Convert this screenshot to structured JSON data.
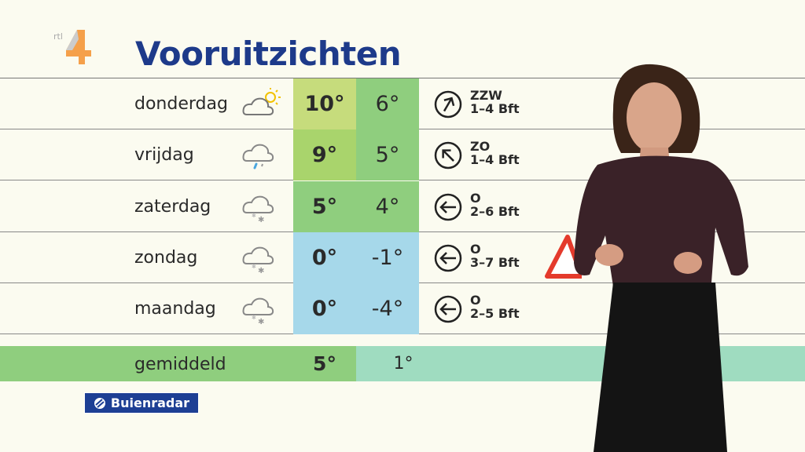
{
  "logo": {
    "text": "rtl 4"
  },
  "title": "Vooruitzichten",
  "colors": {
    "title": "#1d3a8a",
    "green": "#8fce7e",
    "blue": "#a6d8ea",
    "yellowgreen": "#c6dc7c"
  },
  "days": [
    {
      "day": "donderdag",
      "icon": "partly-sunny-icon",
      "max": "10°",
      "min": "6°",
      "dir": "ZZW",
      "force": "1–4 Bft",
      "arrow_deg": 30,
      "max_color": "#c6dc7c",
      "min_color": "#8fce7e"
    },
    {
      "day": "vrijdag",
      "icon": "rain-cloud-icon",
      "max": "9°",
      "min": "5°",
      "dir": "ZO",
      "force": "1–4 Bft",
      "arrow_deg": -45,
      "max_color": "#a9d46c",
      "min_color": "#8fce7e"
    },
    {
      "day": "zaterdag",
      "icon": "snow-cloud-icon",
      "max": "5°",
      "min": "4°",
      "dir": "O",
      "force": "2–6 Bft",
      "arrow_deg": -90,
      "max_color": "#8fce7e",
      "min_color": "#8fce7e"
    },
    {
      "day": "zondag",
      "icon": "snow-cloud-icon",
      "max": "0°",
      "min": "-1°",
      "dir": "O",
      "force": "3–7 Bft",
      "arrow_deg": -90,
      "max_color": "#a6d8ea",
      "min_color": "#a6d8ea"
    },
    {
      "day": "maandag",
      "icon": "snow-cloud-icon",
      "max": "0°",
      "min": "-4°",
      "dir": "O",
      "force": "2–5 Bft",
      "arrow_deg": -90,
      "max_color": "#a6d8ea",
      "min_color": "#a6d8ea"
    }
  ],
  "average": {
    "label": "gemiddeld",
    "max": "5°",
    "min": "1°"
  },
  "brand": "Buienradar"
}
